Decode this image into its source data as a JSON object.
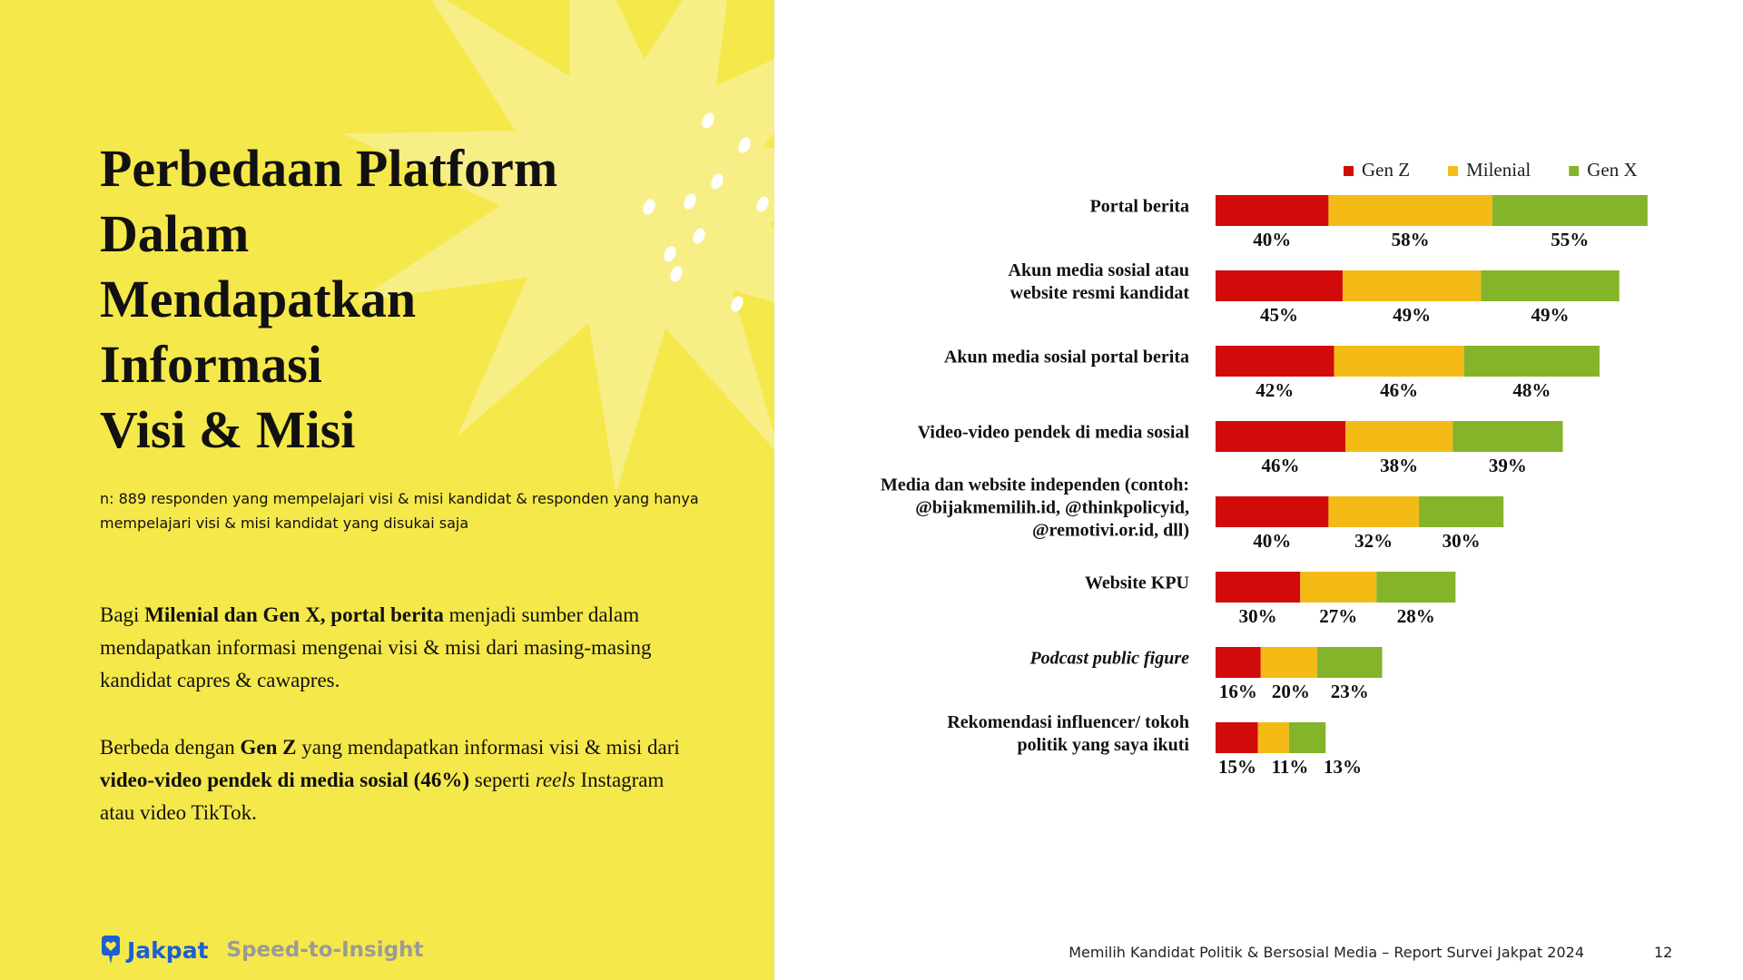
{
  "slide": {
    "title_lines": [
      "Perbedaan Platform",
      "Dalam",
      "Mendapatkan",
      "Informasi",
      "Visi & Misi"
    ],
    "note": "n: 889 responden yang mempelajari visi & misi kandidat & responden yang hanya mempelajari visi & misi kandidat yang disukai saja",
    "paragraphs": [
      [
        "Bagi ",
        "Milenial dan Gen X, portal berita",
        " menjadi sumber dalam mendapatkan informasi mengenai visi & misi dari masing-masing kandidat capres & cawapres."
      ],
      [
        "Berbeda dengan ",
        "Gen Z",
        " yang mendapatkan informasi visi & misi dari ",
        "video-video pendek di media sosial (46%)",
        " seperti ",
        "reels",
        " Instagram atau video TikTok."
      ]
    ],
    "brand": "Jakpat",
    "tagline": "Speed-to-Insight",
    "footer": "Memilih Kandidat Politik & Bersosial Media – Report Survei Jakpat 2024",
    "page": "12"
  },
  "chart_data": {
    "type": "stacked-bar-horizontal",
    "categories": [
      "Portal berita",
      "Akun media sosial atau website resmi kandidat",
      "Akun media sosial portal berita",
      "Video-video pendek di media sosial",
      "Media dan website independen (contoh: @bijakmemilih.id, @thinkpolicyid, @remotivi.or.id, dll)",
      "Website KPU",
      "Podcast public figure",
      "Rekomendasi influencer/ tokoh politik yang saya ikuti"
    ],
    "series": [
      {
        "name": "Gen Z",
        "color": "#d10a0a",
        "values": [
          40,
          45,
          42,
          46,
          40,
          30,
          16,
          15
        ],
        "value_labels": [
          "40%",
          "45%",
          "42%",
          "46%",
          "40%",
          "30%",
          "16%",
          "15%"
        ]
      },
      {
        "name": "Milenial",
        "color": "#f4bb17",
        "values": [
          58,
          49,
          46,
          38,
          32,
          27,
          20,
          11
        ],
        "value_labels": [
          "58%",
          "49%",
          "46%",
          "38%",
          "32%",
          "27%",
          "20%",
          "11%"
        ]
      },
      {
        "name": "Gen X",
        "color": "#84b42a",
        "values": [
          55,
          49,
          48,
          39,
          30,
          28,
          23,
          13
        ],
        "value_labels": [
          "55%",
          "49%",
          "48%",
          "39%",
          "30%",
          "28%",
          "23%",
          "13%"
        ]
      }
    ],
    "legend": "top-right"
  }
}
